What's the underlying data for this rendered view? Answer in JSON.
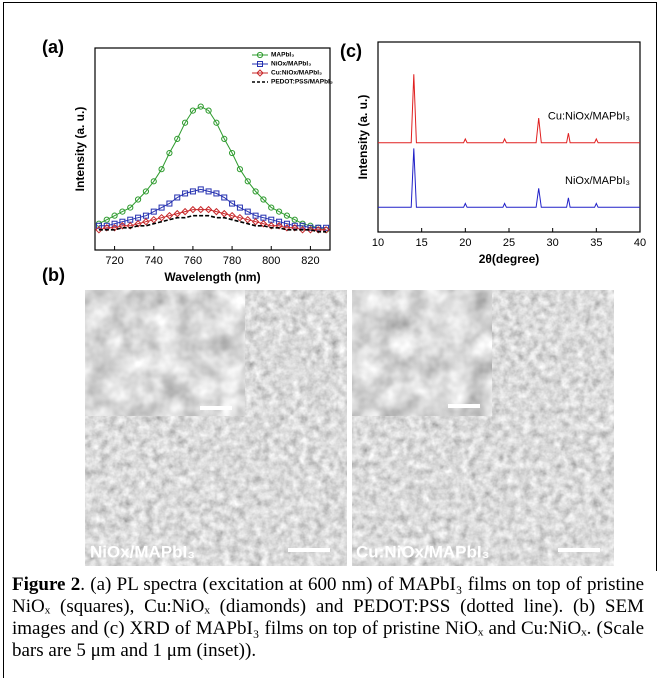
{
  "chart_data": [
    {
      "type": "line",
      "xlabel": "Wavelength (nm)",
      "ylabel": "Intensity (a. u.)",
      "x": [
        712,
        716,
        720,
        724,
        728,
        732,
        736,
        740,
        744,
        748,
        752,
        756,
        760,
        764,
        768,
        772,
        776,
        780,
        784,
        788,
        792,
        796,
        800,
        804,
        808,
        812,
        816,
        820,
        824,
        828
      ],
      "xlim": [
        710,
        830
      ],
      "xticks": [
        720,
        740,
        760,
        780,
        800,
        820
      ],
      "ylim": [
        0,
        100
      ],
      "legend": "upper right",
      "series": [
        {
          "name": "MAPbI₃",
          "color": "#2e9b2e",
          "marker": "circle",
          "dash": false,
          "values": [
            13,
            15,
            17,
            19,
            21,
            25,
            29,
            34,
            40,
            48,
            55,
            63,
            69,
            71,
            69,
            63,
            55,
            48,
            40,
            34,
            29,
            25,
            21,
            19,
            17,
            15,
            13,
            12,
            11,
            10
          ]
        },
        {
          "name": "NiOx/MAPbI₃",
          "color": "#2430b0",
          "marker": "square",
          "dash": false,
          "values": [
            12,
            12,
            13,
            14,
            15,
            16,
            17,
            19,
            21,
            23,
            26,
            28,
            29,
            30,
            29,
            28,
            26,
            23,
            21,
            19,
            17,
            16,
            15,
            14,
            13,
            12,
            12,
            11,
            11,
            11
          ]
        },
        {
          "name": "Cu:NiOx/MAPbI₃",
          "color": "#c8282a",
          "marker": "diamond",
          "dash": false,
          "values": [
            10,
            11,
            11,
            12,
            12,
            13,
            14,
            15,
            16,
            17,
            18,
            19,
            20,
            20,
            20,
            19,
            18,
            17,
            16,
            15,
            14,
            13,
            12,
            12,
            11,
            11,
            10,
            10,
            10,
            10
          ]
        },
        {
          "name": "PEDOT:PSS/MAPbI₃",
          "color": "#000000",
          "marker": null,
          "dash": true,
          "values": [
            10,
            10,
            10,
            11,
            11,
            12,
            12,
            13,
            14,
            15,
            16,
            16,
            17,
            17,
            17,
            16,
            16,
            15,
            14,
            13,
            12,
            12,
            11,
            11,
            10,
            10,
            10,
            10,
            9,
            9
          ]
        }
      ]
    },
    {
      "type": "line",
      "xlabel": "2θ(degree)",
      "ylabel": "Intensity (a. u.)",
      "x": [
        10,
        13.8,
        14.1,
        14.4,
        19.8,
        20,
        20.2,
        24.3,
        24.5,
        24.7,
        28.1,
        28.4,
        28.7,
        31.6,
        31.8,
        32,
        34.8,
        35,
        35.2,
        40
      ],
      "xlim": [
        10,
        40
      ],
      "xticks": [
        10,
        15,
        20,
        25,
        30,
        35,
        40
      ],
      "ylim": [
        0,
        100
      ],
      "legend": "inline",
      "series": [
        {
          "name": "Cu:NiOx/MAPbI₃",
          "color": "#e02020",
          "marker": null,
          "dash": false,
          "values": [
            47,
            47,
            83,
            47,
            47,
            49,
            47,
            47,
            49,
            47,
            47,
            60,
            47,
            47,
            52,
            47,
            47,
            49,
            47,
            47
          ]
        },
        {
          "name": "NiOx/MAPbI₃",
          "color": "#2020c8",
          "marker": null,
          "dash": false,
          "values": [
            13,
            13,
            44,
            13,
            13,
            15,
            13,
            13,
            15,
            13,
            13,
            23,
            13,
            13,
            18,
            13,
            13,
            15,
            13,
            13
          ]
        }
      ]
    }
  ],
  "panel_labels": [
    "(a)",
    "(b)",
    "(c)"
  ],
  "sem_images": [
    {
      "label": "NiOx/MAPbI₃"
    },
    {
      "label": "Cu:NiOx/MAPbI₃"
    }
  ],
  "caption": {
    "lead": "Figure 2",
    "text": ". (a) PL spectra (excitation at 600 nm) of MAPbI₃ films on top of pristine NiOₓ (squares), Cu:NiOₓ (diamonds) and PEDOT:PSS (dotted line). (b) SEM images and (c) XRD of MAPbI₃ films on top of pristine NiOₓ and Cu:NiOₓ. (Scale bars are 5 μm and 1 μm (inset))."
  }
}
